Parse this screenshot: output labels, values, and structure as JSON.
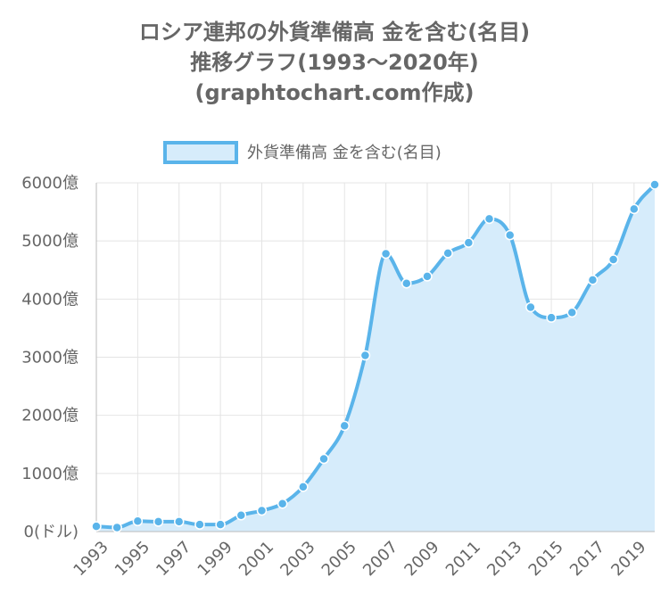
{
  "chart_data": {
    "type": "area",
    "title": [
      "ロシア連邦の外貨準備高 金を含む(名目)",
      "推移グラフ(1993〜2020年)",
      "(graphtochart.com作成)"
    ],
    "legend": {
      "label": "外貨準備高 金を含む(名目)",
      "placement": "top-center"
    },
    "series": [
      {
        "name": "外貨準備高 金を含む(名目)",
        "x": [
          1993,
          1994,
          1995,
          1996,
          1997,
          1998,
          1999,
          2000,
          2001,
          2002,
          2003,
          2004,
          2005,
          2006,
          2007,
          2008,
          2009,
          2010,
          2011,
          2012,
          2013,
          2014,
          2015,
          2016,
          2017,
          2018,
          2019,
          2020
        ],
        "values": [
          90,
          70,
          180,
          170,
          170,
          120,
          120,
          280,
          360,
          480,
          770,
          1250,
          1820,
          3030,
          4780,
          4270,
          4390,
          4790,
          4970,
          5380,
          5100,
          3860,
          3680,
          3770,
          4330,
          4680,
          5550,
          5970
        ]
      }
    ],
    "x_tick_labels": [
      "1993",
      "1995",
      "1997",
      "1999",
      "2001",
      "2003",
      "2005",
      "2007",
      "2009",
      "2011",
      "2013",
      "2015",
      "2017",
      "2019"
    ],
    "y_tick_labels": [
      "0(ドル)",
      "1000億",
      "2000億",
      "3000億",
      "4000億",
      "5000億",
      "6000億"
    ],
    "ylim": [
      0,
      6000
    ],
    "grid": true,
    "colors": {
      "line": "#5ab4ea",
      "fill": "#d6ecfb",
      "point": "#5ab4ea",
      "point_stroke": "#ffffff",
      "grid": "#e4e4e4",
      "axis": "#bbbbbb",
      "text": "#666666"
    }
  }
}
